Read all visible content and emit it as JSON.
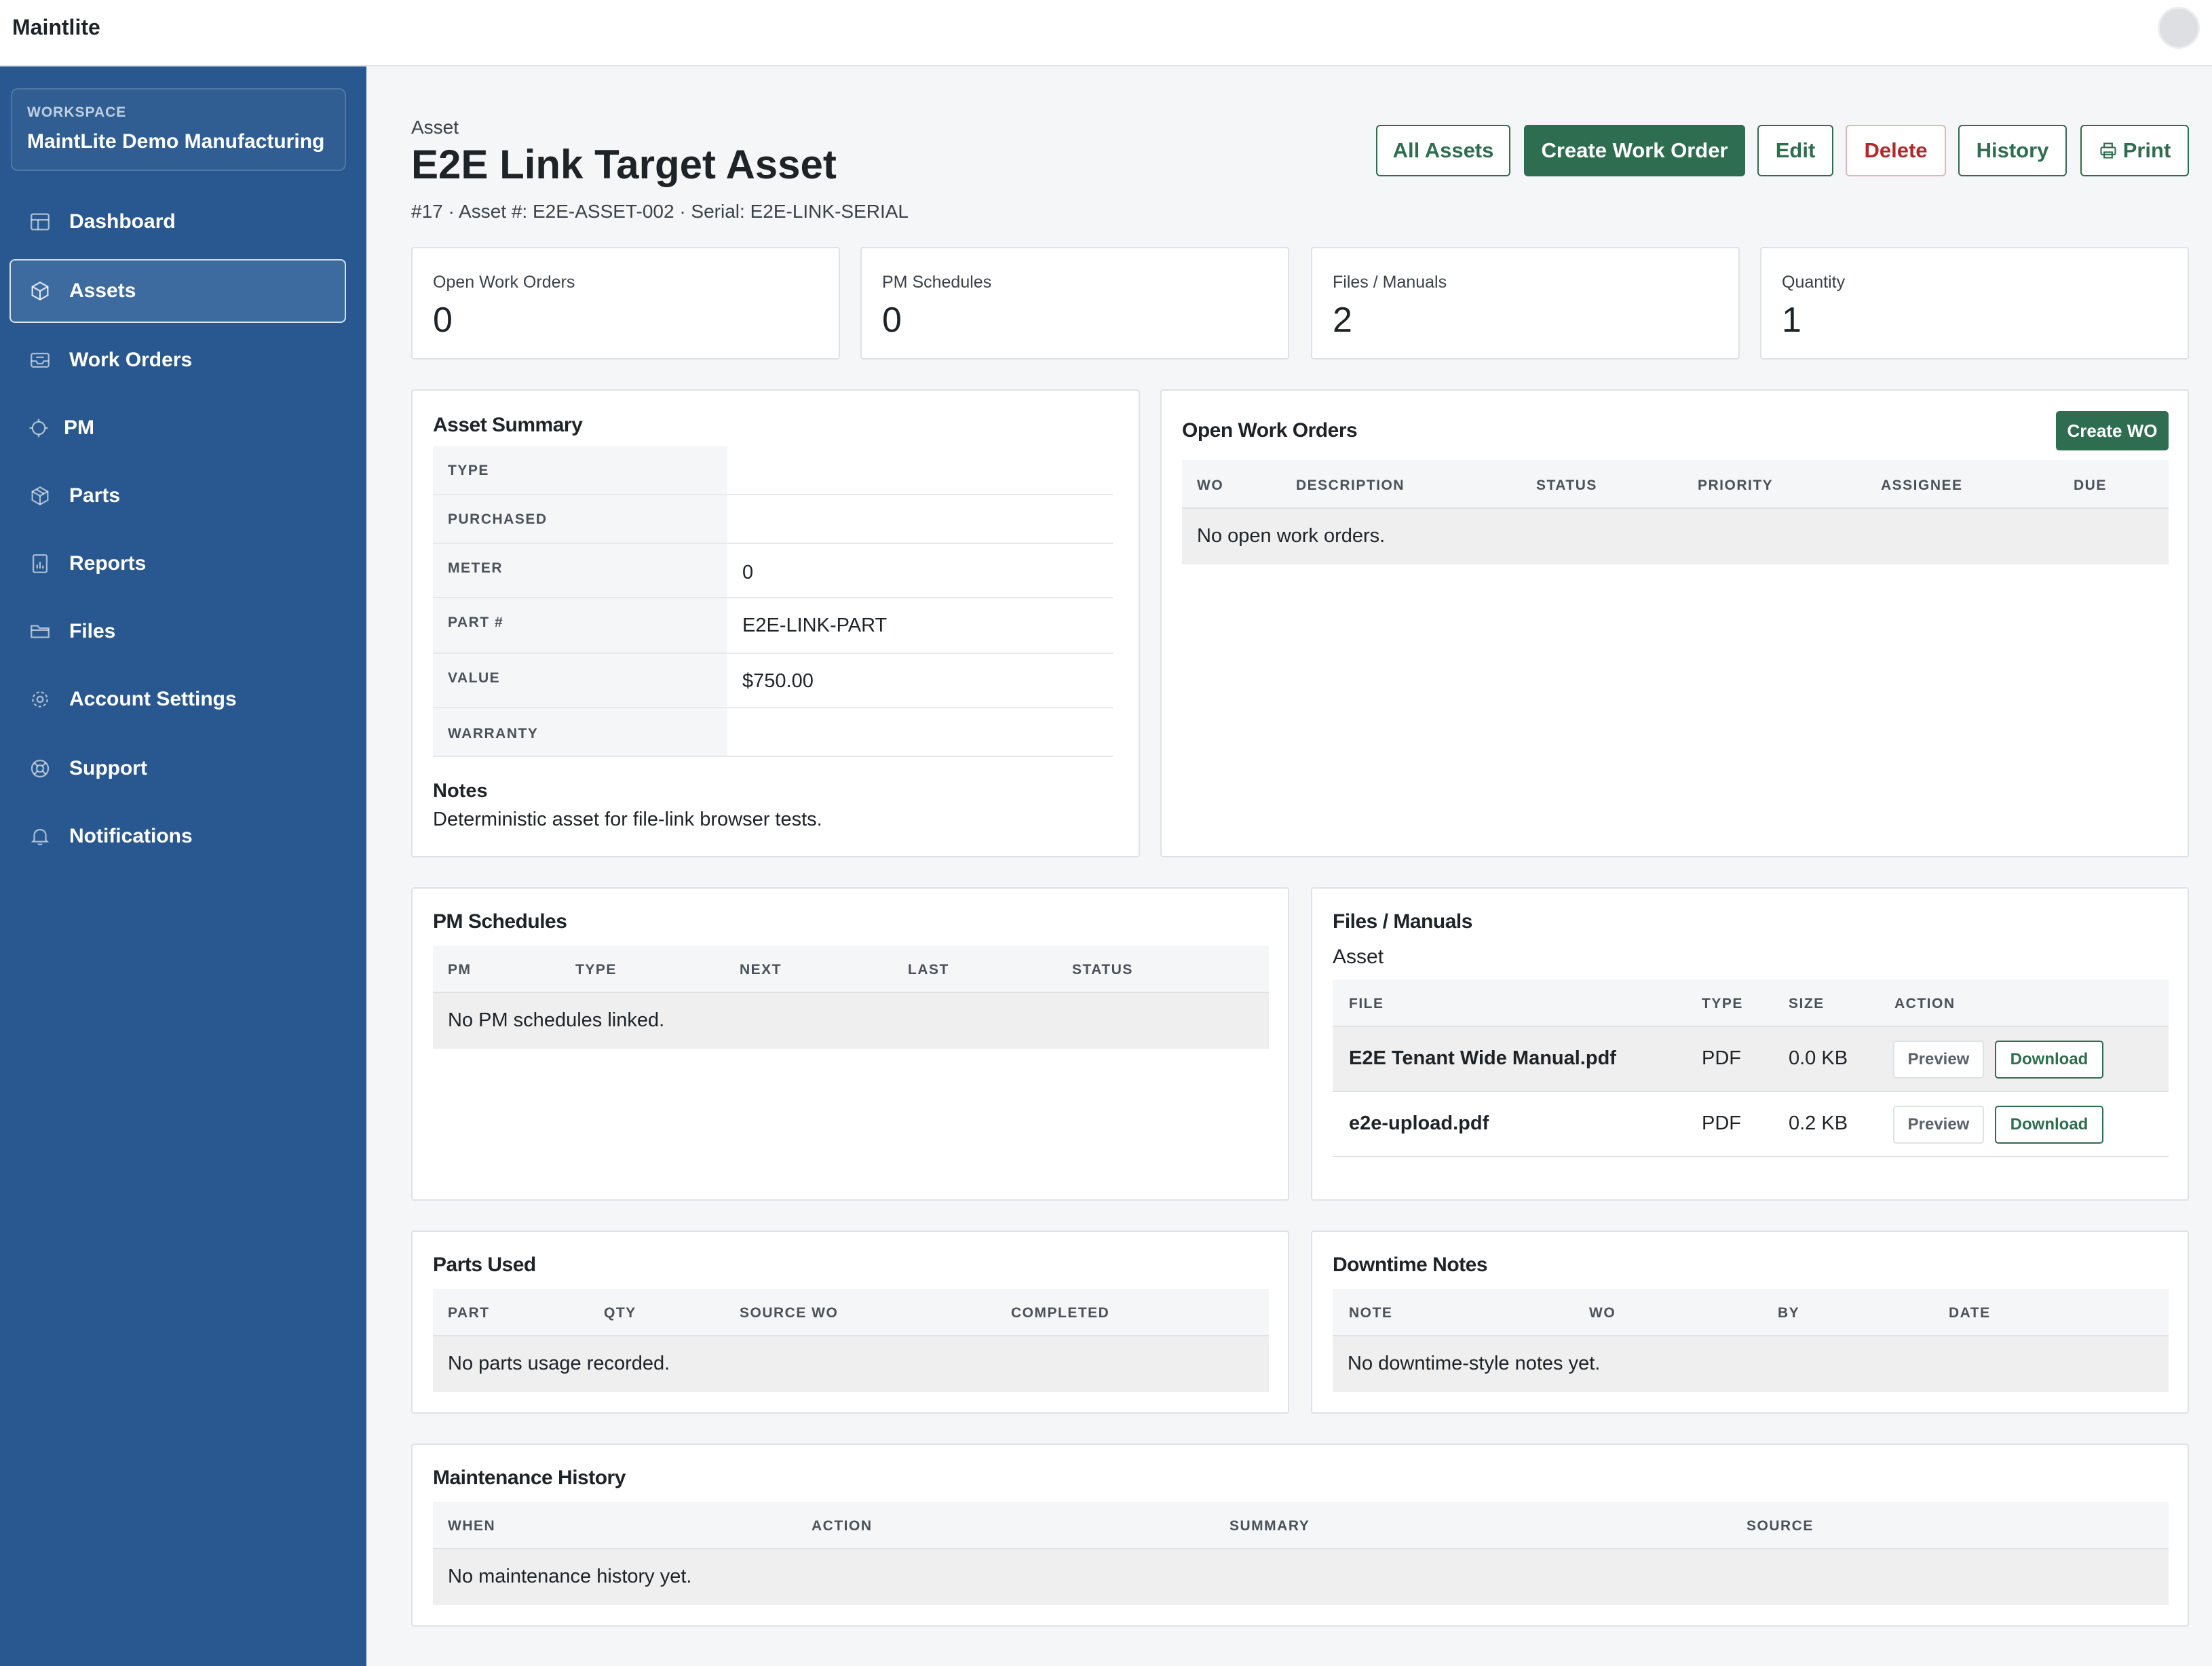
{
  "app": {
    "brand": "Maintlite"
  },
  "sidebar": {
    "workspace_label": "WORKSPACE",
    "workspace_name": "MaintLite Demo Manufacturing",
    "items": [
      {
        "label": "Dashboard",
        "icon": "dashboard-icon"
      },
      {
        "label": "Assets",
        "icon": "cube-icon",
        "active": true
      },
      {
        "label": "Work Orders",
        "icon": "inbox-icon"
      },
      {
        "label": "PM",
        "icon": "cog-icon"
      },
      {
        "label": "Parts",
        "icon": "box-icon"
      },
      {
        "label": "Reports",
        "icon": "chart-file-icon"
      },
      {
        "label": "Files",
        "icon": "folder-icon"
      },
      {
        "label": "Account Settings",
        "icon": "gear-icon"
      },
      {
        "label": "Support",
        "icon": "lifebuoy-icon"
      },
      {
        "label": "Notifications",
        "icon": "bell-icon"
      }
    ]
  },
  "header": {
    "crumb": "Asset",
    "title": "E2E Link Target Asset",
    "subline": "#17 · Asset #: E2E-ASSET-002 · Serial: E2E-LINK-SERIAL",
    "buttons": {
      "all_assets": "All Assets",
      "create_work_order": "Create Work Order",
      "edit": "Edit",
      "delete": "Delete",
      "history": "History",
      "print": "Print"
    }
  },
  "stats": [
    {
      "label": "Open Work Orders",
      "value": "0"
    },
    {
      "label": "PM Schedules",
      "value": "0"
    },
    {
      "label": "Files / Manuals",
      "value": "2"
    },
    {
      "label": "Quantity",
      "value": "1"
    }
  ],
  "asset_summary": {
    "title": "Asset Summary",
    "rows": [
      {
        "key": "TYPE",
        "value": ""
      },
      {
        "key": "PURCHASED",
        "value": ""
      },
      {
        "key": "METER",
        "value": "0"
      },
      {
        "key": "PART #",
        "value": "E2E-LINK-PART"
      },
      {
        "key": "VALUE",
        "value": "$750.00"
      },
      {
        "key": "WARRANTY",
        "value": ""
      }
    ],
    "notes_label": "Notes",
    "notes_text": "Deterministic asset for file-link browser tests."
  },
  "open_work_orders": {
    "title": "Open Work Orders",
    "create_label": "Create WO",
    "columns": [
      "WO",
      "DESCRIPTION",
      "STATUS",
      "PRIORITY",
      "ASSIGNEE",
      "DUE"
    ],
    "empty": "No open work orders."
  },
  "pm_schedules": {
    "title": "PM Schedules",
    "columns": [
      "PM",
      "TYPE",
      "NEXT",
      "LAST",
      "STATUS"
    ],
    "empty": "No PM schedules linked."
  },
  "files": {
    "title": "Files / Manuals",
    "subtitle": "Asset",
    "columns": [
      "FILE",
      "TYPE",
      "SIZE",
      "ACTION"
    ],
    "preview_label": "Preview",
    "download_label": "Download",
    "rows": [
      {
        "name": "E2E Tenant Wide Manual.pdf",
        "type": "PDF",
        "size": "0.0 KB"
      },
      {
        "name": "e2e-upload.pdf",
        "type": "PDF",
        "size": "0.2 KB"
      }
    ]
  },
  "parts_used": {
    "title": "Parts Used",
    "columns": [
      "PART",
      "QTY",
      "SOURCE WO",
      "COMPLETED"
    ],
    "empty": "No parts usage recorded."
  },
  "downtime": {
    "title": "Downtime Notes",
    "columns": [
      "NOTE",
      "WO",
      "BY",
      "DATE"
    ],
    "empty": "No downtime-style notes yet."
  },
  "history": {
    "title": "Maintenance History",
    "columns": [
      "WHEN",
      "ACTION",
      "SUMMARY",
      "SOURCE"
    ],
    "empty": "No maintenance history yet."
  },
  "colors": {
    "sidebar": "#28588f",
    "primary": "#2e6d50",
    "danger": "#b0282a"
  }
}
